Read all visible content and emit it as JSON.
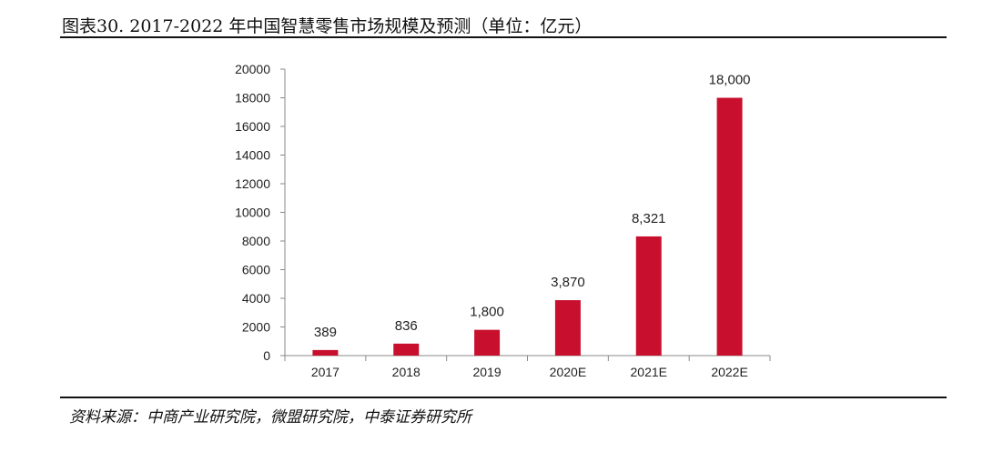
{
  "header": {
    "title": "图表30.  2017-2022 年中国智慧零售市场规模及预测（单位：亿元）"
  },
  "footer": {
    "source": "资料来源：中商产业研究院，微盟研究院，中泰证券研究所"
  },
  "colors": {
    "bar": "#c8102e",
    "axis": "#888888",
    "text": "#222222"
  },
  "chart_data": {
    "type": "bar",
    "title": "2017-2022 年中国智慧零售市场规模及预测（单位：亿元）",
    "xlabel": "",
    "ylabel": "",
    "categories": [
      "2017",
      "2018",
      "2019",
      "2020E",
      "2021E",
      "2022E"
    ],
    "values": [
      389,
      836,
      1800,
      3870,
      8321,
      18000
    ],
    "data_labels": [
      "389",
      "836",
      "1,800",
      "3,870",
      "8,321",
      "18,000"
    ],
    "ylim": [
      0,
      20000
    ],
    "yticks": [
      0,
      2000,
      4000,
      6000,
      8000,
      10000,
      12000,
      14000,
      16000,
      18000,
      20000
    ],
    "ytick_labels": [
      "0",
      "2000",
      "4000",
      "6000",
      "8000",
      "10000",
      "12000",
      "14000",
      "16000",
      "18000",
      "20000"
    ],
    "grid": false,
    "legend": "none"
  }
}
